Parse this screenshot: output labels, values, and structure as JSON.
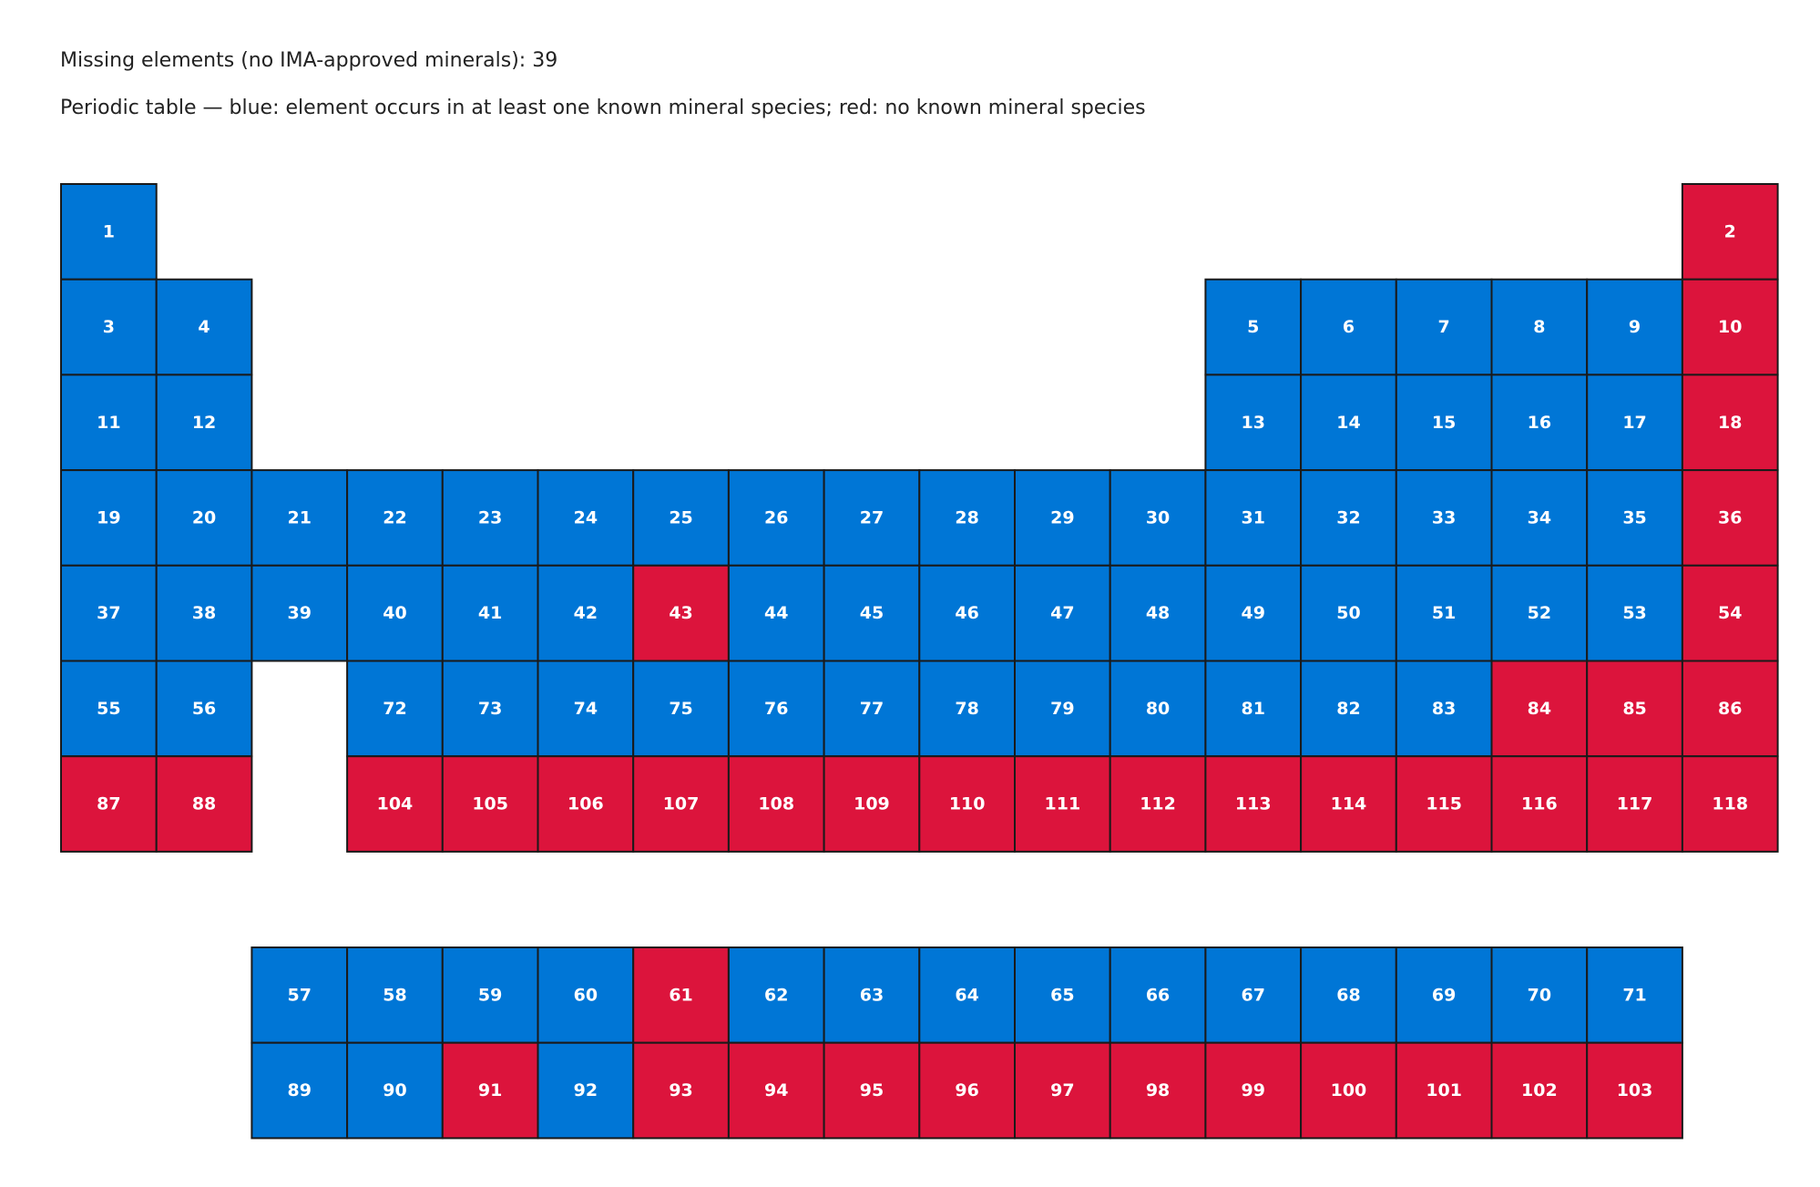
{
  "missing_text": "Missing elements (no IMA-approved minerals): 39",
  "title": "Periodic table — blue: element occurs in at least one known mineral species; red: no known mineral species",
  "colors": {
    "has_mineral": "#0076d6",
    "no_mineral": "#dc143c",
    "border": "#1a1a1a"
  },
  "chart_data": {
    "type": "heatmap",
    "title": "Periodic table — blue: element occurs in at least one known mineral species; red: no known mineral species",
    "missing_count": 39,
    "elements_without_minerals": [
      2,
      10,
      18,
      36,
      43,
      54,
      61,
      84,
      85,
      86,
      87,
      88,
      91,
      93,
      94,
      95,
      96,
      97,
      98,
      99,
      100,
      101,
      102,
      103,
      104,
      105,
      106,
      107,
      108,
      109,
      110,
      111,
      112,
      113,
      114,
      115,
      116,
      117,
      118
    ],
    "element_range": [
      1,
      118
    ]
  }
}
